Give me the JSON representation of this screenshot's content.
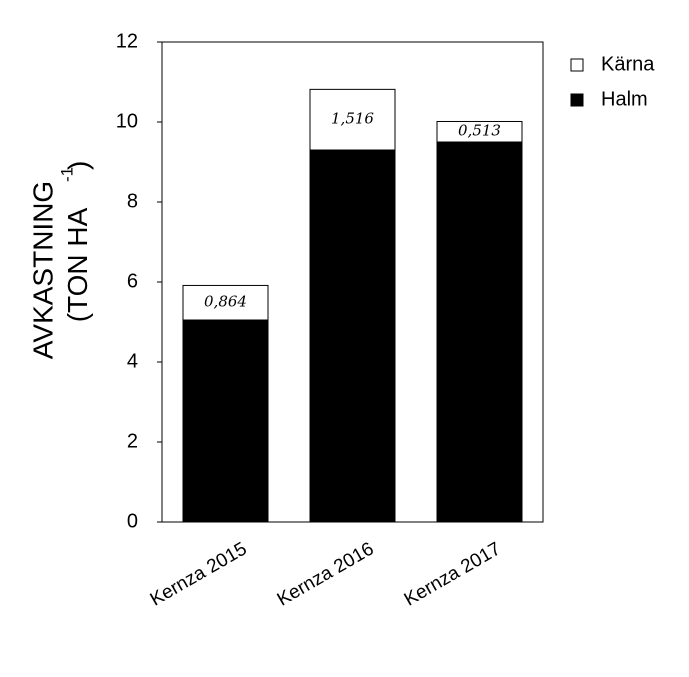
{
  "chart_data": {
    "type": "stacked-bar",
    "ylabel": [
      "AVKASTNING",
      "(TON HA",
      "-1",
      ")"
    ],
    "categories": [
      "Kernza 2015",
      "Kernza 2016",
      "Kernza 2017"
    ],
    "series": [
      {
        "name": "Kärna",
        "color": "#ffffff",
        "values": [
          0.864,
          1.516,
          0.513
        ],
        "value_labels": [
          "0,864",
          "1,516",
          "0,513"
        ]
      },
      {
        "name": "Halm",
        "color": "#000000",
        "values": [
          5.05,
          9.3,
          9.5
        ]
      }
    ],
    "stack_order": [
      1,
      0
    ],
    "ylim": [
      0,
      12
    ],
    "yticks": [
      0,
      2,
      4,
      6,
      8,
      10,
      12
    ],
    "grid": false,
    "legend": "right"
  }
}
